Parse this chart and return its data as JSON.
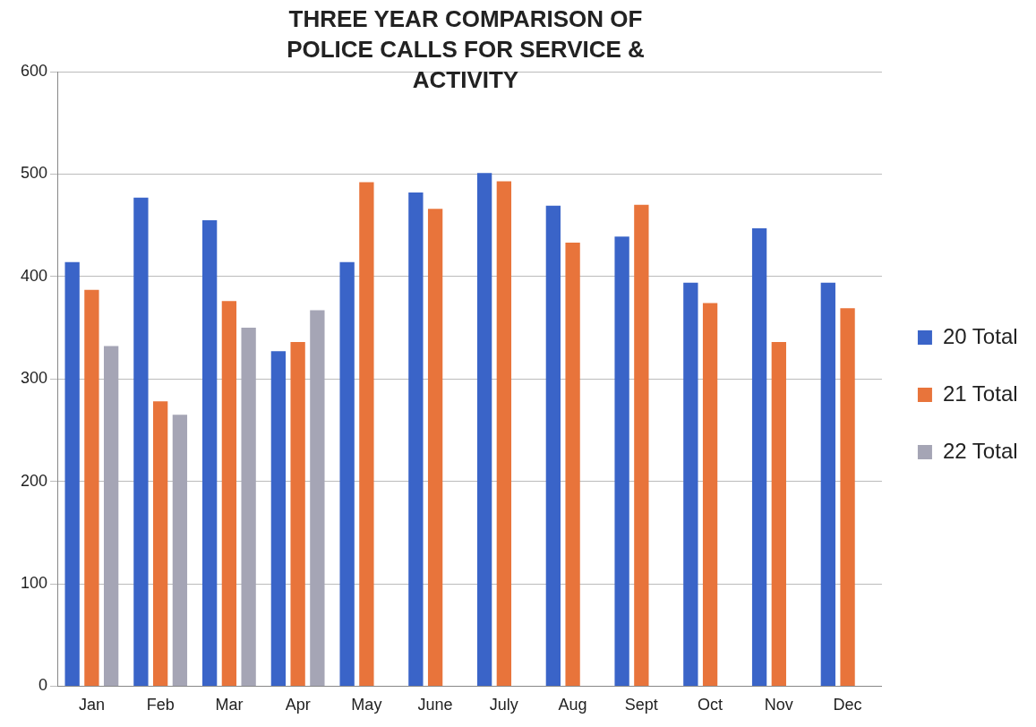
{
  "chart_data": {
    "type": "bar",
    "title": "THREE YEAR COMPARISON OF POLICE CALLS FOR SERVICE & ACTIVITY",
    "categories": [
      "Jan",
      "Feb",
      "Mar",
      "Apr",
      "May",
      "June",
      "July",
      "Aug",
      "Sept",
      "Oct",
      "Nov",
      "Dec"
    ],
    "series": [
      {
        "name": "20 Total",
        "color": "#3a64c8",
        "values": [
          414,
          477,
          455,
          327,
          414,
          482,
          501,
          469,
          439,
          394,
          447,
          394
        ]
      },
      {
        "name": "21 Total",
        "color": "#e8743b",
        "values": [
          387,
          278,
          376,
          336,
          492,
          466,
          493,
          433,
          470,
          374,
          336,
          369
        ]
      },
      {
        "name": "22 Total",
        "color": "#a5a5b5",
        "values": [
          332,
          265,
          350,
          367,
          null,
          null,
          null,
          null,
          null,
          null,
          null,
          null
        ]
      }
    ],
    "ylim": [
      0,
      600
    ],
    "yticks": [
      0,
      100,
      200,
      300,
      400,
      500,
      600
    ],
    "grid": "y",
    "legend": "right"
  }
}
